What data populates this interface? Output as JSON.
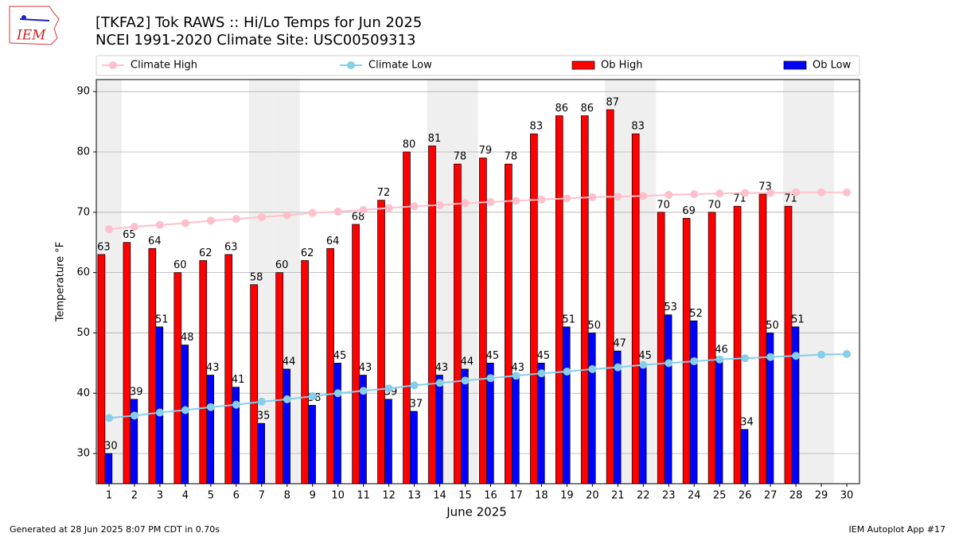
{
  "chart_data": {
    "type": "bar",
    "title": "[TKFA2] Tok RAWS :: Hi/Lo Temps for Jun 2025",
    "subtitle": "NCEI 1991-2020 Climate Site: USC00509313",
    "xlabel": "June 2025",
    "ylabel": "Temperature °F",
    "logo_text": "IEM",
    "footer_left": "Generated at 28 Jun 2025 8:07 PM CDT in 0.70s",
    "footer_right": "IEM Autoplot App #17",
    "x": [
      1,
      2,
      3,
      4,
      5,
      6,
      7,
      8,
      9,
      10,
      11,
      12,
      13,
      14,
      15,
      16,
      17,
      18,
      19,
      20,
      21,
      22,
      23,
      24,
      25,
      26,
      27,
      28,
      29,
      30
    ],
    "xlim": [
      0.5,
      30.5
    ],
    "xticks": [
      1,
      2,
      3,
      4,
      5,
      6,
      7,
      8,
      9,
      10,
      11,
      12,
      13,
      14,
      15,
      16,
      17,
      18,
      19,
      20,
      21,
      22,
      23,
      24,
      25,
      26,
      27,
      28,
      29,
      30
    ],
    "ylim": [
      25,
      92
    ],
    "yticks": [
      30,
      40,
      50,
      60,
      70,
      80,
      90
    ],
    "grid": true,
    "legend": "above",
    "shaded_days": [
      1,
      7,
      8,
      14,
      15,
      21,
      22,
      28,
      29
    ],
    "shade_color": "#efefef",
    "series": [
      {
        "name": "Climate High",
        "kind": "line",
        "color": "#ffc0cb",
        "values": [
          67.2,
          67.6,
          67.9,
          68.2,
          68.6,
          68.9,
          69.2,
          69.5,
          69.9,
          70.1,
          70.4,
          70.7,
          71.0,
          71.2,
          71.5,
          71.7,
          71.9,
          72.1,
          72.3,
          72.5,
          72.6,
          72.7,
          72.9,
          73.0,
          73.1,
          73.2,
          73.2,
          73.3,
          73.3,
          73.3
        ]
      },
      {
        "name": "Climate Low",
        "kind": "line",
        "color": "#87ceeb",
        "values": [
          35.9,
          36.3,
          36.8,
          37.2,
          37.7,
          38.1,
          38.6,
          39.0,
          39.5,
          40.0,
          40.4,
          40.8,
          41.3,
          41.7,
          42.1,
          42.5,
          42.9,
          43.3,
          43.6,
          44.0,
          44.3,
          44.7,
          45.0,
          45.3,
          45.6,
          45.8,
          46.0,
          46.2,
          46.4,
          46.5
        ]
      },
      {
        "name": "Ob High",
        "kind": "bar",
        "color": "#ff0000",
        "values": [
          63,
          65,
          64,
          60,
          62,
          63,
          58,
          60,
          62,
          64,
          68,
          72,
          80,
          81,
          78,
          79,
          78,
          83,
          86,
          86,
          87,
          83,
          70,
          69,
          70,
          71,
          73,
          71,
          null,
          null
        ]
      },
      {
        "name": "Ob Low",
        "kind": "bar",
        "color": "#0000ff",
        "values": [
          30,
          39,
          51,
          48,
          43,
          41,
          35,
          44,
          38,
          45,
          43,
          39,
          37,
          43,
          44,
          45,
          43,
          45,
          51,
          50,
          47,
          45,
          53,
          52,
          46,
          34,
          50,
          51,
          null,
          null
        ]
      }
    ]
  }
}
